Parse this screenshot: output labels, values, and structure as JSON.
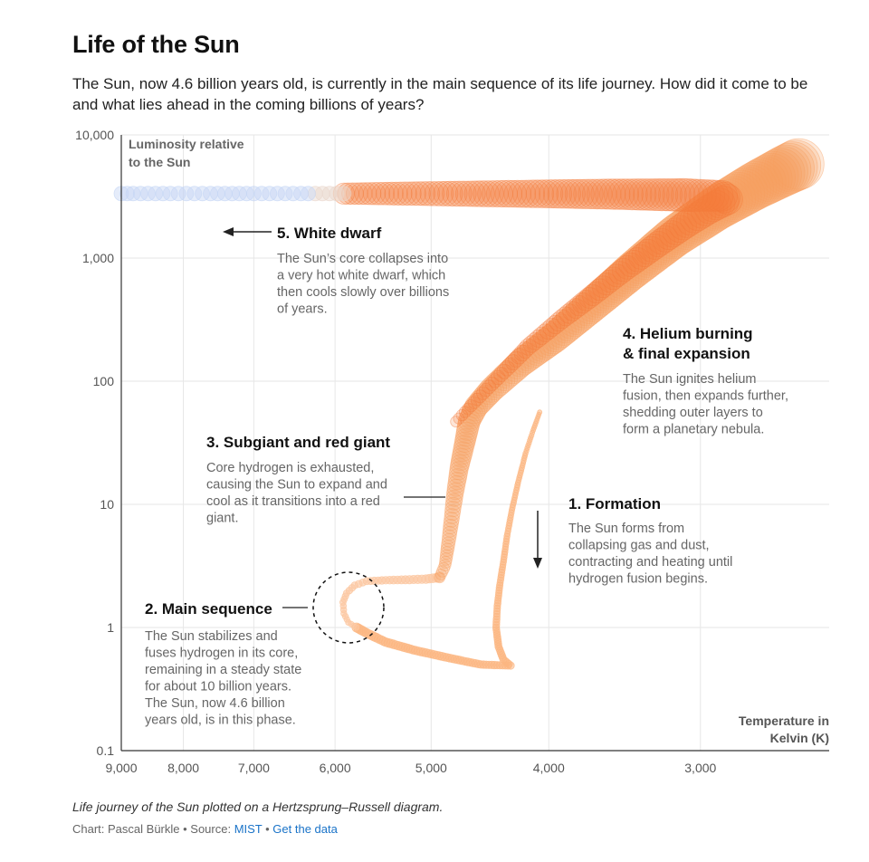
{
  "header": {
    "title": "Life of the Sun",
    "subtitle": "The Sun, now 4.6 billion years old, is currently in the main sequence of its life journey. How did it come to be and what lies ahead in the coming billions of years?"
  },
  "footer": {
    "caption": "Life journey of the Sun plotted on a Hertzsprung–Russell diagram.",
    "credit_prefix": "Chart: Pascal Bürkle • Source: ",
    "source_link": "MIST",
    "separator": " • ",
    "data_link": "Get the data"
  },
  "chart_data": {
    "type": "scatter",
    "title": "Life of the Sun",
    "ylabel": "Luminosity relative to the Sun",
    "ylabel_lines": [
      "Luminosity relative",
      "to the Sun"
    ],
    "xlabel": "Temperature in Kelvin (K)",
    "xlabel_lines": [
      "Temperature in",
      "Kelvin (K)"
    ],
    "x_scale": "log-reversed",
    "y_scale": "log",
    "xlim": [
      9000,
      2350
    ],
    "ylim": [
      0.1,
      10000
    ],
    "x_ticks": [
      9000,
      8000,
      7000,
      6000,
      5000,
      4000,
      3000
    ],
    "x_tick_labels": [
      "9,000",
      "8,000",
      "7,000",
      "6,000",
      "5,000",
      "4,000",
      "3,000"
    ],
    "y_ticks": [
      10000,
      1000,
      100,
      10,
      1,
      0.1
    ],
    "y_tick_labels": [
      "10,000",
      "1,000",
      "100",
      "10",
      "1",
      "0.1"
    ],
    "colors": {
      "formation": "#fbb682",
      "main_sequence": "#fcc7a0",
      "giant": "#f8a060",
      "helium": "#f47b3a",
      "white_dwarf": "#c5d5f5",
      "axis": "#333333",
      "grid": "#e6e6e6",
      "muted_text": "#666666"
    },
    "series": [
      {
        "name": "Formation",
        "points": [
          [
            4070,
            56
          ],
          [
            4120,
            40
          ],
          [
            4180,
            26
          ],
          [
            4240,
            15
          ],
          [
            4290,
            9
          ],
          [
            4330,
            5.5
          ],
          [
            4360,
            3.4
          ],
          [
            4390,
            2.2
          ],
          [
            4410,
            1.5
          ],
          [
            4420,
            1.0
          ],
          [
            4400,
            0.7
          ],
          [
            4360,
            0.55
          ],
          [
            4300,
            0.49
          ],
          [
            4550,
            0.5
          ],
          [
            4850,
            0.57
          ],
          [
            5150,
            0.65
          ],
          [
            5450,
            0.76
          ],
          [
            5650,
            0.9
          ],
          [
            5760,
            1.0
          ]
        ]
      },
      {
        "name": "Main sequence",
        "points": [
          [
            5760,
            1.0
          ],
          [
            5850,
            1.1
          ],
          [
            5900,
            1.3
          ],
          [
            5910,
            1.6
          ],
          [
            5870,
            1.9
          ],
          [
            5780,
            2.2
          ],
          [
            5650,
            2.38
          ],
          [
            5450,
            2.42
          ],
          [
            5250,
            2.44
          ],
          [
            5050,
            2.47
          ],
          [
            4920,
            2.55
          ]
        ]
      },
      {
        "name": "Subgiant and red giant",
        "points": [
          [
            4920,
            2.55
          ],
          [
            4870,
            3.2
          ],
          [
            4840,
            4.8
          ],
          [
            4810,
            7.5
          ],
          [
            4780,
            12
          ],
          [
            4740,
            20
          ],
          [
            4690,
            32
          ],
          [
            4650,
            48
          ],
          [
            4590,
            62
          ],
          [
            4460,
            85
          ],
          [
            4220,
            140
          ],
          [
            3950,
            230
          ],
          [
            3700,
            400
          ],
          [
            3420,
            780
          ],
          [
            3150,
            1500
          ],
          [
            2900,
            2600
          ],
          [
            2700,
            3900
          ],
          [
            2550,
            5200
          ],
          [
            2490,
            5800
          ]
        ]
      },
      {
        "name": "Helium burning and final expansion",
        "points": [
          [
            4770,
            47
          ],
          [
            4480,
            90
          ],
          [
            4160,
            190
          ],
          [
            3900,
            320
          ],
          [
            3680,
            500
          ],
          [
            3470,
            800
          ],
          [
            3250,
            1300
          ],
          [
            3080,
            1900
          ],
          [
            2950,
            2500
          ],
          [
            2850,
            3000
          ],
          [
            2880,
            3200
          ],
          [
            3100,
            3250
          ],
          [
            3500,
            3300
          ],
          [
            4000,
            3320
          ],
          [
            4700,
            3330
          ],
          [
            5300,
            3340
          ],
          [
            5900,
            3340
          ]
        ]
      },
      {
        "name": "White dwarf",
        "points": [
          [
            5900,
            3340
          ],
          [
            6400,
            3340
          ],
          [
            7000,
            3340
          ],
          [
            7600,
            3340
          ],
          [
            8200,
            3340
          ],
          [
            8800,
            3340
          ],
          [
            9000,
            3340
          ]
        ]
      }
    ],
    "annotations": [
      {
        "title": "1. Formation",
        "text": "The Sun forms from collapsing gas and dust, contracting and heating until hydrogen fusion begins."
      },
      {
        "title": "2. Main sequence",
        "text": "The Sun stabilizes and fuses hydrogen in its core, remaining in a steady state for about 10 billion years. The Sun, now 4.6 billion years old, is in this phase."
      },
      {
        "title": "3. Subgiant and red giant",
        "text": "Core hydrogen is exhausted, causing the Sun to expand and cool as it transitions into a red giant."
      },
      {
        "title": "4. Helium burning & final expansion",
        "text": "The Sun ignites helium fusion, then expands further, shedding outer layers to form a planetary nebula."
      },
      {
        "title": "5. White dwarf",
        "text": "The Sun’s core collapses into a very hot white dwarf, which then cools slowly over billions of years."
      }
    ]
  }
}
